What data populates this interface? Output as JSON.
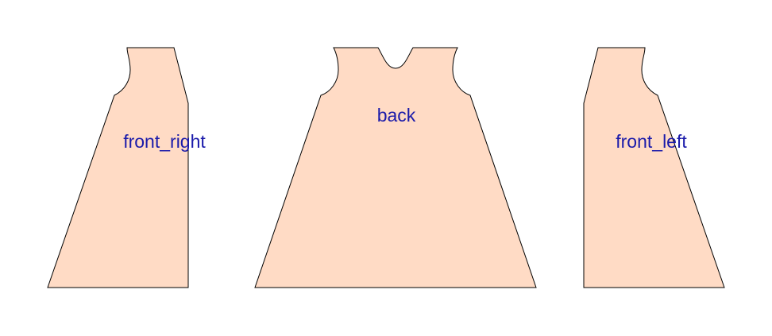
{
  "diagram": {
    "type": "sewing-pattern-layout",
    "colors": {
      "piece_fill": "#FFDBC5",
      "piece_stroke": "#000000",
      "label": "#1A1AAA",
      "background": "#FFFFFF"
    },
    "pieces": [
      {
        "id": "front_right",
        "label": "front_right"
      },
      {
        "id": "back",
        "label": "back"
      },
      {
        "id": "front_left",
        "label": "front_left"
      }
    ]
  }
}
